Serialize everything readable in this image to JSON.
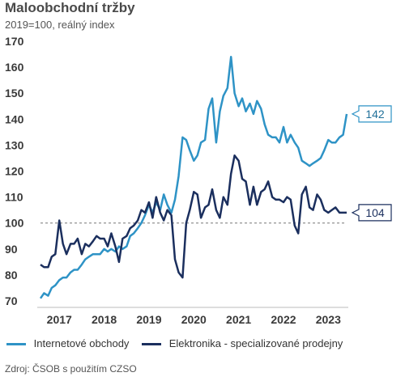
{
  "chart_data": {
    "type": "line",
    "title": "Maloobchodní tržby",
    "subtitle": "2019=100, reálný index",
    "source": "Zdroj: ČSOB s použitím CZSO",
    "ylim": [
      70,
      170
    ],
    "yticks": [
      70,
      80,
      90,
      100,
      110,
      120,
      130,
      140,
      150,
      160,
      170
    ],
    "xlim": [
      2017,
      2023.83
    ],
    "xticks": [
      {
        "label": "2017",
        "value": 2017.0
      },
      {
        "label": "2018",
        "value": 2018.0
      },
      {
        "label": "2019",
        "value": 2019.0
      },
      {
        "label": "2020",
        "value": 2020.0
      },
      {
        "label": "2021",
        "value": 2021.0
      },
      {
        "label": "2022",
        "value": 2022.0
      },
      {
        "label": "2023",
        "value": 2023.0
      }
    ],
    "reference_line": 100,
    "series": [
      {
        "name": "Internetové obchody",
        "color": "#2e93c6",
        "end_label": "142",
        "points": [
          [
            2017.0,
            71
          ],
          [
            2017.08,
            73
          ],
          [
            2017.17,
            72
          ],
          [
            2017.25,
            75
          ],
          [
            2017.33,
            76
          ],
          [
            2017.42,
            78
          ],
          [
            2017.5,
            79
          ],
          [
            2017.58,
            79
          ],
          [
            2017.67,
            81
          ],
          [
            2017.75,
            82
          ],
          [
            2017.83,
            82
          ],
          [
            2017.92,
            84
          ],
          [
            2018.0,
            86
          ],
          [
            2018.08,
            87
          ],
          [
            2018.17,
            88
          ],
          [
            2018.25,
            88
          ],
          [
            2018.33,
            88
          ],
          [
            2018.42,
            90
          ],
          [
            2018.5,
            89
          ],
          [
            2018.58,
            90
          ],
          [
            2018.67,
            89
          ],
          [
            2018.75,
            91
          ],
          [
            2018.83,
            90
          ],
          [
            2018.92,
            91
          ],
          [
            2019.0,
            95
          ],
          [
            2019.08,
            96
          ],
          [
            2019.17,
            98
          ],
          [
            2019.25,
            100
          ],
          [
            2019.33,
            103
          ],
          [
            2019.42,
            107
          ],
          [
            2019.5,
            104
          ],
          [
            2019.58,
            108
          ],
          [
            2019.67,
            105
          ],
          [
            2019.75,
            111
          ],
          [
            2019.83,
            107
          ],
          [
            2019.92,
            104
          ],
          [
            2020.0,
            109
          ],
          [
            2020.08,
            118
          ],
          [
            2020.17,
            133
          ],
          [
            2020.25,
            132
          ],
          [
            2020.33,
            128
          ],
          [
            2020.42,
            124
          ],
          [
            2020.5,
            126
          ],
          [
            2020.58,
            131
          ],
          [
            2020.67,
            132
          ],
          [
            2020.75,
            144
          ],
          [
            2020.83,
            148
          ],
          [
            2020.92,
            131
          ],
          [
            2021.0,
            143
          ],
          [
            2021.08,
            149
          ],
          [
            2021.17,
            152
          ],
          [
            2021.25,
            164
          ],
          [
            2021.33,
            150
          ],
          [
            2021.42,
            145
          ],
          [
            2021.5,
            148
          ],
          [
            2021.58,
            143
          ],
          [
            2021.67,
            146
          ],
          [
            2021.75,
            142
          ],
          [
            2021.83,
            147
          ],
          [
            2021.92,
            144
          ],
          [
            2022.0,
            138
          ],
          [
            2022.08,
            134
          ],
          [
            2022.17,
            133
          ],
          [
            2022.25,
            133
          ],
          [
            2022.33,
            131
          ],
          [
            2022.42,
            137
          ],
          [
            2022.5,
            131
          ],
          [
            2022.58,
            134
          ],
          [
            2022.67,
            131
          ],
          [
            2022.75,
            129
          ],
          [
            2022.83,
            124
          ],
          [
            2022.92,
            123
          ],
          [
            2023.0,
            122
          ],
          [
            2023.08,
            123
          ],
          [
            2023.17,
            124
          ],
          [
            2023.25,
            125
          ],
          [
            2023.33,
            128
          ],
          [
            2023.42,
            132
          ],
          [
            2023.5,
            131
          ],
          [
            2023.58,
            131
          ],
          [
            2023.67,
            133
          ],
          [
            2023.75,
            134
          ],
          [
            2023.83,
            142
          ]
        ]
      },
      {
        "name": "Elektronika - specializované prodejny",
        "color": "#1b2f5e",
        "end_label": "104",
        "points": [
          [
            2017.0,
            84
          ],
          [
            2017.08,
            83
          ],
          [
            2017.17,
            83
          ],
          [
            2017.25,
            87
          ],
          [
            2017.33,
            88
          ],
          [
            2017.42,
            101
          ],
          [
            2017.5,
            92
          ],
          [
            2017.58,
            88
          ],
          [
            2017.67,
            92
          ],
          [
            2017.75,
            92
          ],
          [
            2017.83,
            94
          ],
          [
            2017.92,
            88
          ],
          [
            2018.0,
            92
          ],
          [
            2018.08,
            91
          ],
          [
            2018.17,
            93
          ],
          [
            2018.25,
            95
          ],
          [
            2018.33,
            94
          ],
          [
            2018.42,
            94
          ],
          [
            2018.5,
            91
          ],
          [
            2018.58,
            96
          ],
          [
            2018.67,
            91
          ],
          [
            2018.75,
            85
          ],
          [
            2018.83,
            94
          ],
          [
            2018.92,
            95
          ],
          [
            2019.0,
            98
          ],
          [
            2019.08,
            99
          ],
          [
            2019.17,
            101
          ],
          [
            2019.25,
            105
          ],
          [
            2019.33,
            104
          ],
          [
            2019.42,
            108
          ],
          [
            2019.5,
            102
          ],
          [
            2019.58,
            110
          ],
          [
            2019.67,
            104
          ],
          [
            2019.75,
            101
          ],
          [
            2019.83,
            105
          ],
          [
            2019.92,
            103
          ],
          [
            2020.0,
            86
          ],
          [
            2020.08,
            81
          ],
          [
            2020.17,
            79
          ],
          [
            2020.25,
            100
          ],
          [
            2020.33,
            105
          ],
          [
            2020.42,
            112
          ],
          [
            2020.5,
            111
          ],
          [
            2020.58,
            102
          ],
          [
            2020.67,
            106
          ],
          [
            2020.75,
            107
          ],
          [
            2020.83,
            113
          ],
          [
            2020.92,
            105
          ],
          [
            2021.0,
            102
          ],
          [
            2021.08,
            110
          ],
          [
            2021.17,
            107
          ],
          [
            2021.25,
            119
          ],
          [
            2021.33,
            126
          ],
          [
            2021.42,
            124
          ],
          [
            2021.5,
            117
          ],
          [
            2021.58,
            116
          ],
          [
            2021.67,
            107
          ],
          [
            2021.75,
            114
          ],
          [
            2021.83,
            107
          ],
          [
            2021.92,
            112
          ],
          [
            2022.0,
            113
          ],
          [
            2022.08,
            116
          ],
          [
            2022.17,
            110
          ],
          [
            2022.25,
            109
          ],
          [
            2022.33,
            109
          ],
          [
            2022.42,
            108
          ],
          [
            2022.5,
            110
          ],
          [
            2022.58,
            109
          ],
          [
            2022.67,
            99
          ],
          [
            2022.75,
            96
          ],
          [
            2022.83,
            111
          ],
          [
            2022.92,
            114
          ],
          [
            2023.0,
            106
          ],
          [
            2023.08,
            105
          ],
          [
            2023.17,
            111
          ],
          [
            2023.25,
            109
          ],
          [
            2023.33,
            105
          ],
          [
            2023.42,
            104
          ],
          [
            2023.5,
            105
          ],
          [
            2023.58,
            106
          ],
          [
            2023.67,
            104
          ],
          [
            2023.75,
            104
          ],
          [
            2023.83,
            104
          ]
        ]
      }
    ]
  }
}
